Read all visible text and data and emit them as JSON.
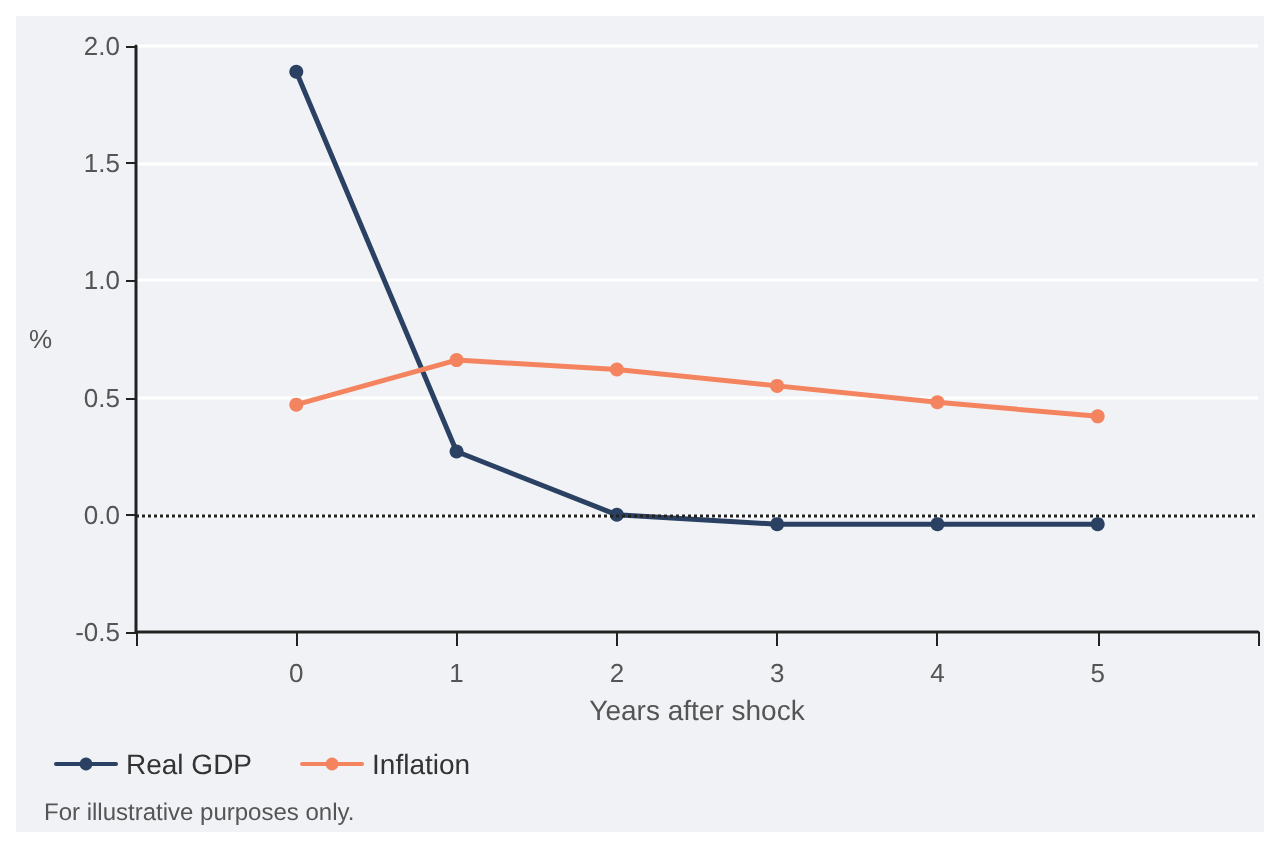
{
  "chart_data": {
    "type": "line",
    "xlabel": "Years after shock",
    "ylabel": "%",
    "x": [
      0,
      1,
      2,
      3,
      4,
      5
    ],
    "series": [
      {
        "name": "Real GDP",
        "color": "#2b4163",
        "values": [
          1.89,
          0.27,
          0.0,
          -0.04,
          -0.04,
          -0.04
        ]
      },
      {
        "name": "Inflation",
        "color": "#f4845f",
        "values": [
          0.47,
          0.66,
          0.62,
          0.55,
          0.48,
          0.42
        ]
      }
    ],
    "xlim": [
      -1,
      6
    ],
    "xticks": [
      {
        "value": -1,
        "label": null
      },
      0,
      1,
      2,
      3,
      4,
      5,
      {
        "value": 6,
        "label": null
      }
    ],
    "ylim": [
      -0.5,
      2.0
    ],
    "yticks": [
      {
        "value": -0.5,
        "label": "-0.5"
      },
      {
        "value": 0,
        "label": "0.0"
      },
      0.5,
      {
        "value": 1,
        "label": "1.0"
      },
      1.5,
      {
        "value": 2,
        "label": "2.0"
      }
    ],
    "ref_lines": [
      {
        "axis": "y",
        "value": 0,
        "color": "#222222",
        "line_style": "dotted"
      }
    ],
    "grid": "y",
    "legend": "bottom left",
    "marker": "circle",
    "line_style": "solid",
    "annotations": [
      "For illustrative purposes only."
    ]
  }
}
